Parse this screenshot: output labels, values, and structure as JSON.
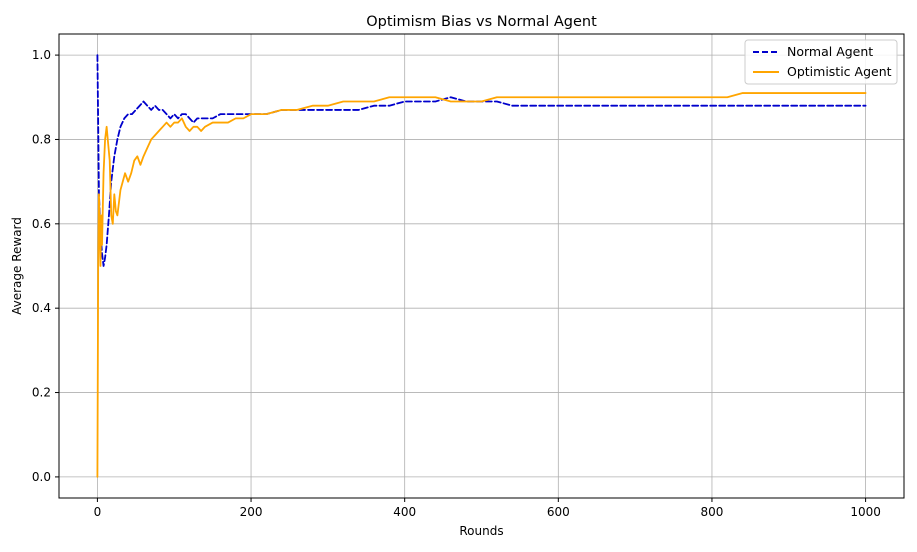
{
  "chart_data": {
    "type": "line",
    "title": "Optimism Bias vs Normal Agent",
    "xlabel": "Rounds",
    "ylabel": "Average Reward",
    "xlim": [
      -50,
      1050
    ],
    "ylim": [
      -0.05,
      1.05
    ],
    "xticks": [
      0,
      200,
      400,
      600,
      800,
      1000
    ],
    "yticks": [
      0.0,
      0.2,
      0.4,
      0.6,
      0.8,
      1.0
    ],
    "xtick_labels": [
      "0",
      "200",
      "400",
      "600",
      "800",
      "1000"
    ],
    "ytick_labels": [
      "0.0",
      "0.2",
      "0.4",
      "0.6",
      "0.8",
      "1.0"
    ],
    "grid": true,
    "legend_position": "top-right",
    "series": [
      {
        "name": "Normal Agent",
        "color": "#0000cc",
        "line_style": "dashed",
        "x": [
          0,
          2,
          4,
          6,
          8,
          10,
          12,
          15,
          18,
          22,
          26,
          30,
          35,
          40,
          45,
          50,
          55,
          60,
          65,
          70,
          75,
          80,
          85,
          90,
          95,
          100,
          105,
          110,
          115,
          120,
          125,
          130,
          140,
          150,
          160,
          170,
          180,
          190,
          200,
          220,
          240,
          260,
          280,
          300,
          320,
          340,
          360,
          380,
          400,
          420,
          440,
          460,
          480,
          500,
          520,
          540,
          560,
          580,
          600,
          620,
          640,
          660,
          680,
          700,
          720,
          740,
          760,
          780,
          800,
          820,
          840,
          860,
          880,
          900,
          920,
          940,
          960,
          980,
          1000
        ],
        "y": [
          1.0,
          0.67,
          0.58,
          0.53,
          0.5,
          0.52,
          0.55,
          0.62,
          0.7,
          0.76,
          0.8,
          0.83,
          0.85,
          0.86,
          0.86,
          0.87,
          0.88,
          0.89,
          0.88,
          0.87,
          0.88,
          0.87,
          0.87,
          0.86,
          0.85,
          0.86,
          0.85,
          0.86,
          0.86,
          0.85,
          0.84,
          0.85,
          0.85,
          0.85,
          0.86,
          0.86,
          0.86,
          0.86,
          0.86,
          0.86,
          0.87,
          0.87,
          0.87,
          0.87,
          0.87,
          0.87,
          0.88,
          0.88,
          0.89,
          0.89,
          0.89,
          0.9,
          0.89,
          0.89,
          0.89,
          0.88,
          0.88,
          0.88,
          0.88,
          0.88,
          0.88,
          0.88,
          0.88,
          0.88,
          0.88,
          0.88,
          0.88,
          0.88,
          0.88,
          0.88,
          0.88,
          0.88,
          0.88,
          0.88,
          0.88,
          0.88,
          0.88,
          0.88,
          0.88
        ]
      },
      {
        "name": "Optimistic Agent",
        "color": "#ffa500",
        "line_style": "solid",
        "x": [
          0,
          1,
          2,
          3,
          4,
          5,
          6,
          8,
          10,
          12,
          14,
          16,
          18,
          20,
          22,
          24,
          26,
          28,
          30,
          33,
          36,
          40,
          44,
          48,
          52,
          56,
          60,
          65,
          70,
          75,
          80,
          85,
          90,
          95,
          100,
          105,
          110,
          115,
          120,
          125,
          130,
          135,
          140,
          150,
          160,
          170,
          180,
          190,
          200,
          220,
          240,
          260,
          280,
          300,
          320,
          340,
          360,
          380,
          390,
          400,
          420,
          440,
          460,
          480,
          500,
          520,
          540,
          560,
          580,
          600,
          620,
          640,
          660,
          680,
          700,
          720,
          740,
          760,
          780,
          800,
          820,
          840,
          860,
          880,
          900,
          920,
          940,
          960,
          980,
          1000
        ],
        "y": [
          0.0,
          0.5,
          0.67,
          0.6,
          0.5,
          0.62,
          0.55,
          0.72,
          0.8,
          0.83,
          0.79,
          0.75,
          0.62,
          0.6,
          0.67,
          0.63,
          0.62,
          0.65,
          0.68,
          0.7,
          0.72,
          0.7,
          0.72,
          0.75,
          0.76,
          0.74,
          0.76,
          0.78,
          0.8,
          0.81,
          0.82,
          0.83,
          0.84,
          0.83,
          0.84,
          0.84,
          0.85,
          0.83,
          0.82,
          0.83,
          0.83,
          0.82,
          0.83,
          0.84,
          0.84,
          0.84,
          0.85,
          0.85,
          0.86,
          0.86,
          0.87,
          0.87,
          0.88,
          0.88,
          0.89,
          0.89,
          0.89,
          0.9,
          0.9,
          0.9,
          0.9,
          0.9,
          0.89,
          0.89,
          0.89,
          0.9,
          0.9,
          0.9,
          0.9,
          0.9,
          0.9,
          0.9,
          0.9,
          0.9,
          0.9,
          0.9,
          0.9,
          0.9,
          0.9,
          0.9,
          0.9,
          0.91,
          0.91,
          0.91,
          0.91,
          0.91,
          0.91,
          0.91,
          0.91,
          0.91
        ]
      }
    ]
  }
}
